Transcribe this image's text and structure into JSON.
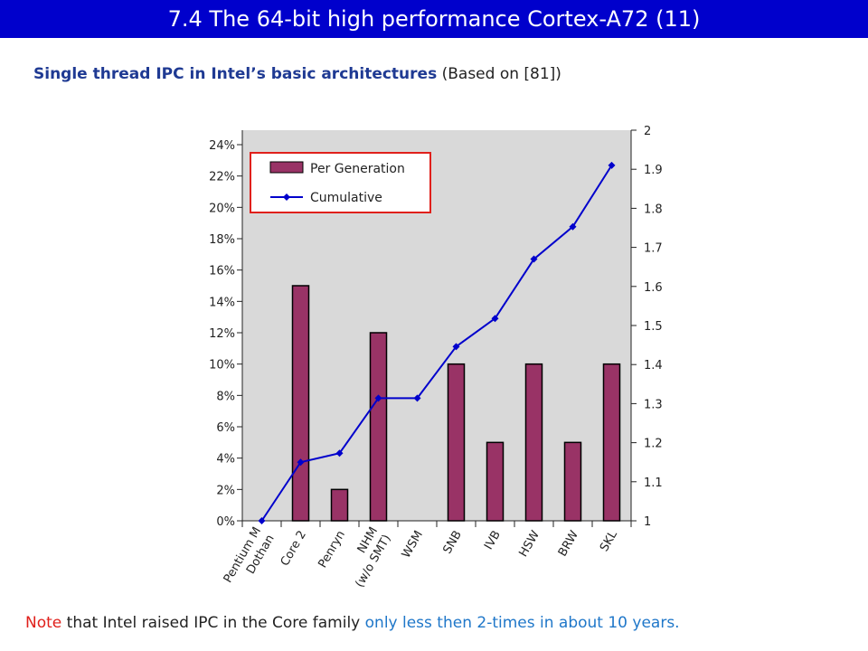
{
  "slide": {
    "title": "7.4 The 64-bit high performance Cortex-A72 (11)",
    "subtitle_bold": "Single thread IPC in Intel’s basic architectures",
    "subtitle_rest": " (Based on [81])",
    "note": {
      "part1": "Note",
      "part2": " that Intel raised IPC in the Core family ",
      "part3": "only less then 2-times  in about 10 years."
    }
  },
  "chart_data": {
    "type": "bar+line",
    "categories": [
      "Pentium M\nDothan",
      "Core 2",
      "Penryn",
      "NHM\n(w/o SMT)",
      "WSM",
      "SNB",
      "IVB",
      "HSW",
      "BRW",
      "SKL"
    ],
    "series": [
      {
        "name": "Per Generation",
        "kind": "bar",
        "axis": "left",
        "values": [
          0,
          15,
          2,
          12,
          0,
          10,
          5,
          10,
          5,
          10
        ],
        "color": "#993366"
      },
      {
        "name": "Cumulative",
        "kind": "line",
        "axis": "right",
        "values": [
          1.0,
          1.15,
          1.173,
          1.314,
          1.314,
          1.446,
          1.518,
          1.67,
          1.753,
          1.91
        ],
        "color": "#0000cc"
      }
    ],
    "left_axis": {
      "ticks": [
        "0%",
        "2%",
        "4%",
        "6%",
        "8%",
        "10%",
        "12%",
        "14%",
        "16%",
        "18%",
        "20%",
        "22%",
        "24%"
      ],
      "ylim": [
        0,
        24
      ]
    },
    "right_axis": {
      "ticks": [
        "1",
        "1.1",
        "1.2",
        "1.3",
        "1.4",
        "1.5",
        "1.6",
        "1.7",
        "1.8",
        "1.9",
        "2"
      ],
      "ylim": [
        1,
        2
      ]
    },
    "plot_background": "#d9d9d9",
    "legend_placement": "top-left",
    "legend_border": "#e0201b",
    "grid": false
  }
}
